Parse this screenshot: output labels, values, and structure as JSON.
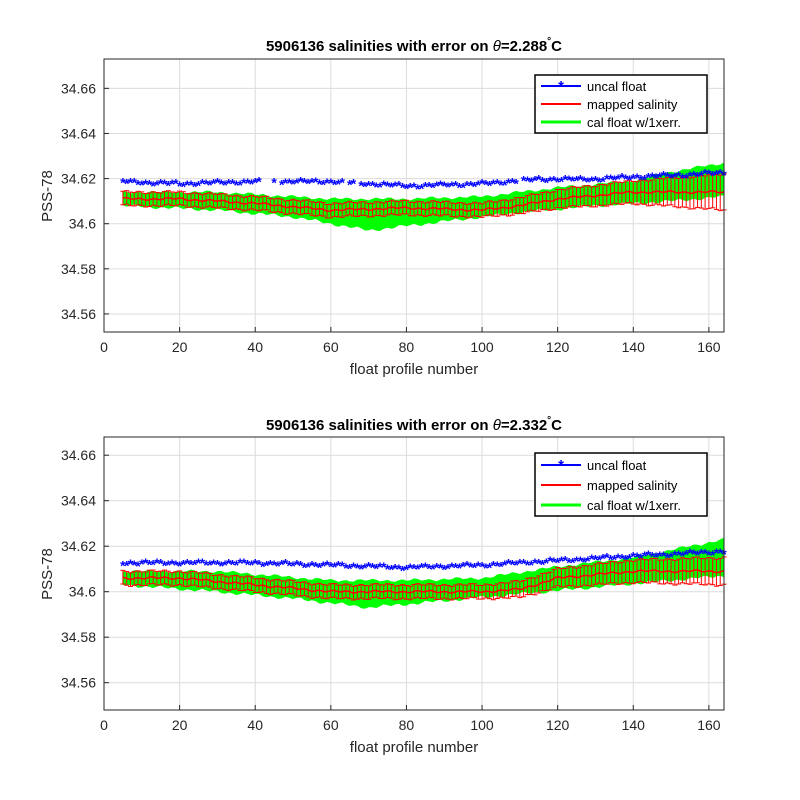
{
  "colors": {
    "uncal_float": "#0000ff",
    "mapped_salinity": "#ff0000",
    "cal_float_error": "#00ff00",
    "grid": "#dcdcdc",
    "axis": "#262626"
  },
  "chart_data": [
    {
      "type": "line",
      "title_main": "5906136 salinities with error on ",
      "title_theta": "θ",
      "title_value": "=2.288",
      "title_degree": "°",
      "title_unit": "C",
      "xlabel": "float profile number",
      "ylabel": "PSS-78",
      "xlim": [
        0,
        164
      ],
      "ylim": [
        34.552,
        34.673
      ],
      "xticks": [
        0,
        20,
        40,
        60,
        80,
        100,
        120,
        140,
        160
      ],
      "yticks": [
        34.56,
        34.58,
        34.6,
        34.62,
        34.64,
        34.66
      ],
      "ytick_labels": [
        "34.56",
        "34.58",
        "34.6",
        "34.62",
        "34.64",
        "34.66"
      ],
      "grid": true,
      "legend_position": "top-right",
      "legend": [
        "uncal float",
        "mapped salinity",
        "cal float w/1xerr."
      ],
      "uncal_float_keypoints": [
        [
          5,
          34.618
        ],
        [
          20,
          34.617
        ],
        [
          40,
          34.618
        ],
        [
          60,
          34.618
        ],
        [
          80,
          34.616
        ],
        [
          100,
          34.617
        ],
        [
          115,
          34.619
        ],
        [
          130,
          34.619
        ],
        [
          140,
          34.62
        ],
        [
          155,
          34.621
        ],
        [
          164,
          34.622
        ]
      ],
      "mapped_keypoints": [
        [
          5,
          34.611
        ],
        [
          20,
          34.611
        ],
        [
          40,
          34.609
        ],
        [
          60,
          34.606
        ],
        [
          80,
          34.607
        ],
        [
          100,
          34.606
        ],
        [
          110,
          34.608
        ],
        [
          120,
          34.611
        ],
        [
          140,
          34.614
        ],
        [
          164,
          34.614
        ]
      ],
      "mapped_error_keypoints": [
        [
          5,
          0.003
        ],
        [
          100,
          0.003
        ],
        [
          140,
          0.005
        ],
        [
          164,
          0.008
        ]
      ],
      "cal_upper_keypoints": [
        [
          5,
          34.614
        ],
        [
          30,
          34.614
        ],
        [
          60,
          34.611
        ],
        [
          80,
          34.611
        ],
        [
          100,
          34.612
        ],
        [
          120,
          34.616
        ],
        [
          140,
          34.619
        ],
        [
          150,
          34.623
        ],
        [
          164,
          34.627
        ]
      ],
      "cal_lower_keypoints": [
        [
          5,
          34.608
        ],
        [
          30,
          34.606
        ],
        [
          50,
          34.603
        ],
        [
          70,
          34.597
        ],
        [
          90,
          34.601
        ],
        [
          110,
          34.605
        ],
        [
          130,
          34.608
        ],
        [
          150,
          34.61
        ],
        [
          164,
          34.612
        ]
      ]
    },
    {
      "type": "line",
      "title_main": "5906136 salinities with error on ",
      "title_theta": "θ",
      "title_value": "=2.332",
      "title_degree": "°",
      "title_unit": "C",
      "xlabel": "float profile number",
      "ylabel": "PSS-78",
      "xlim": [
        0,
        164
      ],
      "ylim": [
        34.548,
        34.668
      ],
      "xticks": [
        0,
        20,
        40,
        60,
        80,
        100,
        120,
        140,
        160
      ],
      "yticks": [
        34.56,
        34.58,
        34.6,
        34.62,
        34.64,
        34.66
      ],
      "ytick_labels": [
        "34.56",
        "34.58",
        "34.6",
        "34.62",
        "34.64",
        "34.66"
      ],
      "grid": true,
      "legend_position": "top-right",
      "legend": [
        "uncal float",
        "mapped salinity",
        "cal float w/1xerr."
      ],
      "uncal_float_keypoints": [
        [
          5,
          34.612
        ],
        [
          20,
          34.612
        ],
        [
          40,
          34.612
        ],
        [
          60,
          34.611
        ],
        [
          80,
          34.61
        ],
        [
          100,
          34.611
        ],
        [
          120,
          34.613
        ],
        [
          140,
          34.615
        ],
        [
          164,
          34.617
        ]
      ],
      "mapped_keypoints": [
        [
          5,
          34.606
        ],
        [
          20,
          34.606
        ],
        [
          40,
          34.603
        ],
        [
          60,
          34.6
        ],
        [
          80,
          34.6
        ],
        [
          100,
          34.6
        ],
        [
          110,
          34.601
        ],
        [
          120,
          34.606
        ],
        [
          140,
          34.609
        ],
        [
          164,
          34.609
        ]
      ],
      "mapped_error_keypoints": [
        [
          5,
          0.003
        ],
        [
          100,
          0.003
        ],
        [
          120,
          0.004
        ],
        [
          164,
          0.006
        ]
      ],
      "cal_upper_keypoints": [
        [
          5,
          34.609
        ],
        [
          30,
          34.609
        ],
        [
          60,
          34.605
        ],
        [
          80,
          34.605
        ],
        [
          100,
          34.606
        ],
        [
          120,
          34.611
        ],
        [
          140,
          34.615
        ],
        [
          164,
          34.623
        ]
      ],
      "cal_lower_keypoints": [
        [
          5,
          34.603
        ],
        [
          30,
          34.6
        ],
        [
          50,
          34.597
        ],
        [
          70,
          34.593
        ],
        [
          90,
          34.596
        ],
        [
          110,
          34.599
        ],
        [
          130,
          34.602
        ],
        [
          150,
          34.605
        ],
        [
          164,
          34.607
        ]
      ]
    }
  ]
}
